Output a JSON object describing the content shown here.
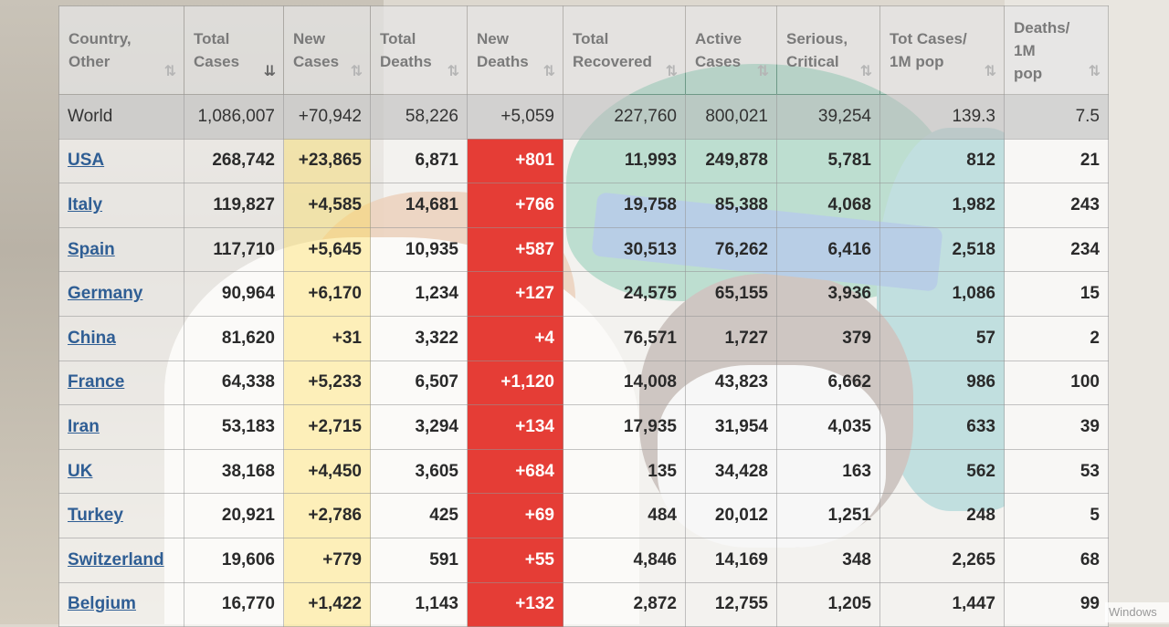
{
  "table": {
    "headers": [
      {
        "lines": [
          "Country,",
          "Other"
        ]
      },
      {
        "lines": [
          "Total",
          "Cases"
        ],
        "sort": "⇊",
        "sorted": true
      },
      {
        "lines": [
          "New",
          "Cases"
        ],
        "sort": "⇅"
      },
      {
        "lines": [
          "Total",
          "Deaths"
        ],
        "sort": "⇅"
      },
      {
        "lines": [
          "New",
          "Deaths"
        ],
        "sort": "⇅"
      },
      {
        "lines": [
          "Total",
          "Recovered"
        ],
        "sort": "⇅"
      },
      {
        "lines": [
          "Active",
          "Cases"
        ],
        "sort": "⇅"
      },
      {
        "lines": [
          "Serious,",
          "Critical"
        ],
        "sort": "⇅"
      },
      {
        "lines": [
          "Tot Cases/",
          "1M pop"
        ],
        "sort": "⇅"
      },
      {
        "lines": [
          "Deaths/",
          "1M",
          "pop"
        ],
        "sort": "⇅"
      }
    ],
    "header_first_sort": "⇅",
    "rows": [
      {
        "country": "World",
        "total_cases": "1,086,007",
        "new_cases": "+70,942",
        "total_deaths": "58,226",
        "new_deaths": "+5,059",
        "total_recovered": "227,760",
        "active_cases": "800,021",
        "serious_critical": "39,254",
        "cases_per_1m": "139.3",
        "deaths_per_1m": "7.5"
      },
      {
        "country": "USA",
        "total_cases": "268,742",
        "new_cases": "+23,865",
        "total_deaths": "6,871",
        "new_deaths": "+801",
        "total_recovered": "11,993",
        "active_cases": "249,878",
        "serious_critical": "5,781",
        "cases_per_1m": "812",
        "deaths_per_1m": "21"
      },
      {
        "country": "Italy",
        "total_cases": "119,827",
        "new_cases": "+4,585",
        "total_deaths": "14,681",
        "new_deaths": "+766",
        "total_recovered": "19,758",
        "active_cases": "85,388",
        "serious_critical": "4,068",
        "cases_per_1m": "1,982",
        "deaths_per_1m": "243"
      },
      {
        "country": "Spain",
        "total_cases": "117,710",
        "new_cases": "+5,645",
        "total_deaths": "10,935",
        "new_deaths": "+587",
        "total_recovered": "30,513",
        "active_cases": "76,262",
        "serious_critical": "6,416",
        "cases_per_1m": "2,518",
        "deaths_per_1m": "234"
      },
      {
        "country": "Germany",
        "total_cases": "90,964",
        "new_cases": "+6,170",
        "total_deaths": "1,234",
        "new_deaths": "+127",
        "total_recovered": "24,575",
        "active_cases": "65,155",
        "serious_critical": "3,936",
        "cases_per_1m": "1,086",
        "deaths_per_1m": "15"
      },
      {
        "country": "China",
        "total_cases": "81,620",
        "new_cases": "+31",
        "total_deaths": "3,322",
        "new_deaths": "+4",
        "total_recovered": "76,571",
        "active_cases": "1,727",
        "serious_critical": "379",
        "cases_per_1m": "57",
        "deaths_per_1m": "2"
      },
      {
        "country": "France",
        "total_cases": "64,338",
        "new_cases": "+5,233",
        "total_deaths": "6,507",
        "new_deaths": "+1,120",
        "total_recovered": "14,008",
        "active_cases": "43,823",
        "serious_critical": "6,662",
        "cases_per_1m": "986",
        "deaths_per_1m": "100"
      },
      {
        "country": "Iran",
        "total_cases": "53,183",
        "new_cases": "+2,715",
        "total_deaths": "3,294",
        "new_deaths": "+134",
        "total_recovered": "17,935",
        "active_cases": "31,954",
        "serious_critical": "4,035",
        "cases_per_1m": "633",
        "deaths_per_1m": "39"
      },
      {
        "country": "UK",
        "total_cases": "38,168",
        "new_cases": "+4,450",
        "total_deaths": "3,605",
        "new_deaths": "+684",
        "total_recovered": "135",
        "active_cases": "34,428",
        "serious_critical": "163",
        "cases_per_1m": "562",
        "deaths_per_1m": "53"
      },
      {
        "country": "Turkey",
        "total_cases": "20,921",
        "new_cases": "+2,786",
        "total_deaths": "425",
        "new_deaths": "+69",
        "total_recovered": "484",
        "active_cases": "20,012",
        "serious_critical": "1,251",
        "cases_per_1m": "248",
        "deaths_per_1m": "5"
      },
      {
        "country": "Switzerland",
        "total_cases": "19,606",
        "new_cases": "+779",
        "total_deaths": "591",
        "new_deaths": "+55",
        "total_recovered": "4,846",
        "active_cases": "14,169",
        "serious_critical": "348",
        "cases_per_1m": "2,265",
        "deaths_per_1m": "68"
      },
      {
        "country": "Belgium",
        "total_cases": "16,770",
        "new_cases": "+1,422",
        "total_deaths": "1,143",
        "new_deaths": "+132",
        "total_recovered": "2,872",
        "active_cases": "12,755",
        "serious_critical": "1,205",
        "cases_per_1m": "1,447",
        "deaths_per_1m": "99"
      }
    ]
  },
  "colors": {
    "new_cases_highlight": "#ffeeaa",
    "new_deaths_highlight": "#e53d36",
    "country_link": "#2f5e94"
  },
  "watermark": "Windows"
}
